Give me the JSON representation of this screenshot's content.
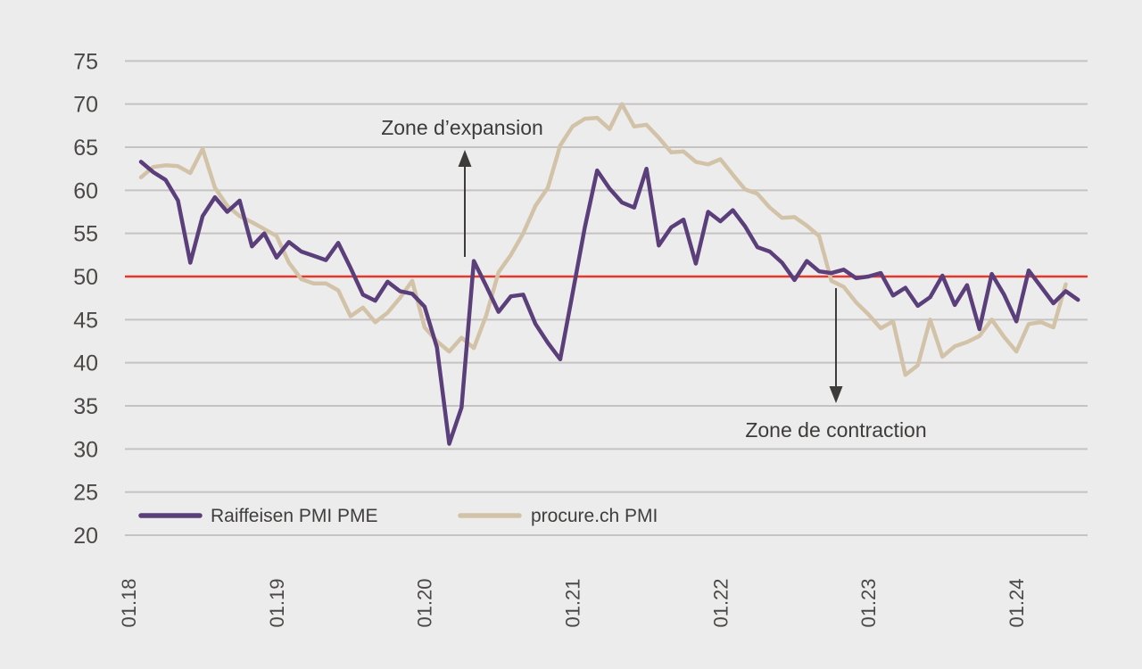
{
  "chart_data": {
    "type": "line",
    "title": "",
    "x_tick_labels": [
      "01.18",
      "01.19",
      "01.20",
      "01.21",
      "01.22",
      "01.23",
      "01.24"
    ],
    "y_axis": {
      "min": 20,
      "max": 75,
      "step": 5,
      "ticks": [
        75,
        70,
        65,
        60,
        55,
        50,
        45,
        40,
        35,
        30,
        25,
        20
      ]
    },
    "grid": true,
    "reference_line": {
      "value": 50,
      "color": "#e8382c"
    },
    "legend_position": "bottom-left-inside",
    "background_color": "#edecec",
    "series": [
      {
        "name": "Raiffeisen PMI PME",
        "color": "#5b3f7a",
        "values": [
          63.3,
          62.1,
          61.2,
          58.8,
          51.6,
          57.0,
          59.2,
          57.5,
          58.8,
          53.5,
          55.0,
          52.2,
          54.0,
          52.9,
          52.4,
          51.9,
          53.9,
          51.0,
          47.9,
          47.2,
          49.4,
          48.3,
          48.0,
          46.5,
          41.8,
          30.6,
          34.8,
          51.8,
          48.9,
          45.9,
          47.7,
          47.9,
          44.5,
          42.3,
          40.4,
          48.0,
          55.7,
          62.3,
          60.2,
          58.6,
          58.0,
          62.5,
          53.6,
          55.7,
          56.6,
          51.5,
          57.5,
          56.4,
          57.7,
          55.8,
          53.4,
          52.9,
          51.6,
          49.6,
          51.8,
          50.6,
          50.4,
          50.8,
          49.8,
          50.0,
          50.4,
          47.8,
          48.7,
          46.6,
          47.6,
          50.1,
          46.7,
          49.0,
          43.9,
          50.3,
          47.9,
          44.8,
          50.7,
          48.8,
          46.9,
          48.3,
          47.3
        ]
      },
      {
        "name": "procure.ch PMI",
        "color": "#d2c3a8",
        "values": [
          61.5,
          62.7,
          62.9,
          62.8,
          62.0,
          64.8,
          60.3,
          58.2,
          57.0,
          56.3,
          55.5,
          54.7,
          51.6,
          49.7,
          49.2,
          49.2,
          48.4,
          45.4,
          46.4,
          44.7,
          45.8,
          47.5,
          49.5,
          44.1,
          42.5,
          41.3,
          42.9,
          41.7,
          45.5,
          50.5,
          52.5,
          55.0,
          58.2,
          60.3,
          65.2,
          67.4,
          68.3,
          68.4,
          67.1,
          70.0,
          67.4,
          67.6,
          66.1,
          64.4,
          64.5,
          63.3,
          63.0,
          63.6,
          61.8,
          60.1,
          59.6,
          58.0,
          56.8,
          56.9,
          55.9,
          54.7,
          49.5,
          48.8,
          47.0,
          45.6,
          44.0,
          44.8,
          38.6,
          39.7,
          45.0,
          40.7,
          41.9,
          42.4,
          43.1,
          45.0,
          43.0,
          41.3,
          44.5,
          44.7,
          44.1,
          49.1
        ]
      }
    ],
    "annotations": [
      {
        "text": "Zone d’expansion",
        "arrow_direction": "up"
      },
      {
        "text": "Zone de contraction",
        "arrow_direction": "down"
      }
    ]
  }
}
